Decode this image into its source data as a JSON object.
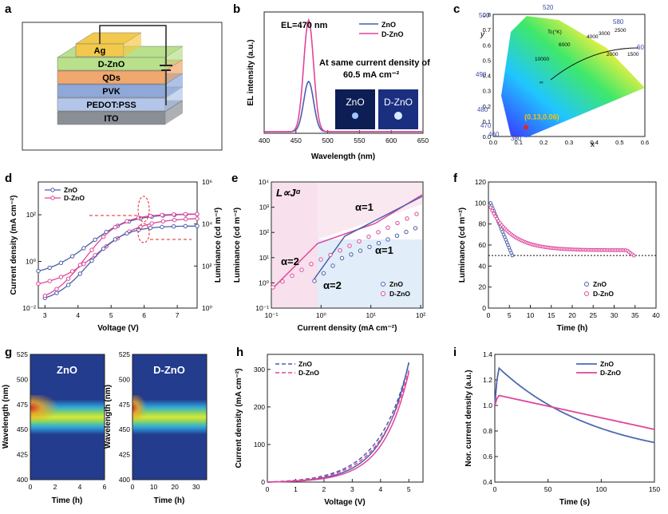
{
  "panel_labels": [
    "a",
    "b",
    "c",
    "d",
    "e",
    "f",
    "g",
    "h",
    "i"
  ],
  "device_stack": {
    "layers": [
      "Ag",
      "D-ZnO",
      "QDs",
      "PVK",
      "PEDOT:PSS",
      "ITO"
    ],
    "colors": [
      "#f2c94c",
      "#b9e08b",
      "#f0a86e",
      "#8fa8d8",
      "#b3c6ea",
      "#8a8f96"
    ]
  },
  "chart_data": [
    {
      "id": "b",
      "type": "line",
      "xlabel": "Wavelength (nm)",
      "ylabel": "EL intensity (a.u.)",
      "xlim": [
        400,
        650
      ],
      "xticks": [
        "400",
        "450",
        "500",
        "550",
        "600",
        "650"
      ],
      "annotations": [
        "EL=470 nm",
        "At same current density of",
        "60.5 mA cm⁻²",
        "ZnO",
        "D-ZnO"
      ],
      "series": [
        {
          "name": "ZnO",
          "color": "#4a5fa8",
          "peak": 470,
          "width": 11,
          "height": 0.45
        },
        {
          "name": "D-ZnO",
          "color": "#e0459a",
          "peak": 470,
          "width": 11,
          "height": 1.0
        }
      ]
    },
    {
      "id": "c",
      "type": "scatter",
      "xlabel": "x",
      "ylabel": "y",
      "xlim": [
        0.0,
        0.6
      ],
      "ylim": [
        0.0,
        0.8
      ],
      "xticks": [
        "0.0",
        "0.1",
        "0.2",
        "0.3",
        "0.4",
        "0.5",
        "0.6"
      ],
      "yticks": [
        "0.0",
        "0.1",
        "0.2",
        "0.3",
        "0.4",
        "0.5",
        "0.6",
        "0.7",
        "0.8"
      ],
      "wavelength_labels": [
        "500",
        "580",
        "60",
        "490",
        "480",
        "470",
        "460",
        "380",
        "520"
      ],
      "planck_labels": [
        "Tc(°K)",
        "10000",
        "6000",
        "4000",
        "3000",
        "2500",
        "2000",
        "1500",
        "∞"
      ],
      "point": {
        "x": 0.13,
        "y": 0.06,
        "label": "(0.13,0.06)"
      }
    },
    {
      "id": "d",
      "type": "line",
      "xlabel": "Voltage (V)",
      "ylabel": "Current density (mA cm⁻²)",
      "y2label": "Luminance (cd m⁻²)",
      "xlim": [
        2.8,
        7.6
      ],
      "xticks": [
        "3",
        "4",
        "5",
        "6",
        "7"
      ],
      "yticks": [
        "10⁻²",
        "10⁰",
        "10²"
      ],
      "y2ticks": [
        "10⁰",
        "10²",
        "10⁴",
        "10⁶"
      ],
      "series": [
        {
          "name": "ZnO",
          "color": "#4a5fa8"
        },
        {
          "name": "D-ZnO",
          "color": "#e0459a"
        }
      ]
    },
    {
      "id": "e",
      "type": "scatter",
      "xlabel": "Current density (mA cm⁻²)",
      "ylabel": "Luminance (cd m⁻²)",
      "xticks": [
        "10⁻¹",
        "10⁰",
        "10¹",
        "10²"
      ],
      "yticks": [
        "10⁻¹",
        "10⁰",
        "10¹",
        "10²",
        "10³",
        "10⁴"
      ],
      "annotations": [
        "L∝Jᵅ",
        "α=2",
        "α=1",
        "α=1",
        "α=2"
      ],
      "series": [
        {
          "name": "ZnO",
          "color": "#4a5fa8"
        },
        {
          "name": "D-ZnO",
          "color": "#e0459a"
        }
      ]
    },
    {
      "id": "f",
      "type": "line",
      "xlabel": "Time (h)",
      "ylabel": "Luminance (cd m⁻²)",
      "xlim": [
        0,
        40
      ],
      "ylim": [
        0,
        120
      ],
      "xticks": [
        "0",
        "5",
        "10",
        "15",
        "20",
        "25",
        "30",
        "35",
        "40"
      ],
      "yticks": [
        "0",
        "20",
        "40",
        "60",
        "80",
        "100",
        "120"
      ],
      "series": [
        {
          "name": "ZnO",
          "color": "#4a5fa8"
        },
        {
          "name": "D-ZnO",
          "color": "#e0459a"
        }
      ]
    },
    {
      "id": "g",
      "type": "heatmap",
      "ylabel": "Wavelength (nm)",
      "yticks": [
        "400",
        "425",
        "450",
        "475",
        "500",
        "525"
      ],
      "panels": [
        {
          "label": "ZnO",
          "xlabel": "Time (h)",
          "xticks": [
            "0",
            "2",
            "4",
            "6"
          ]
        },
        {
          "label": "D-ZnO",
          "xlabel": "Time (h)",
          "xticks": [
            "0",
            "10",
            "20",
            "30"
          ]
        }
      ]
    },
    {
      "id": "h",
      "type": "line",
      "xlabel": "Voltage (V)",
      "ylabel": "Current density (mA cm⁻²)",
      "xlim": [
        0,
        5.5
      ],
      "ylim": [
        0,
        340
      ],
      "xticks": [
        "0",
        "1",
        "2",
        "3",
        "4",
        "5"
      ],
      "yticks": [
        "0",
        "100",
        "200",
        "300"
      ],
      "series": [
        {
          "name": "ZnO",
          "color": "#4a5fa8"
        },
        {
          "name": "D-ZnO",
          "color": "#e0459a"
        }
      ]
    },
    {
      "id": "i",
      "type": "line",
      "xlabel": "Time (s)",
      "ylabel": "Nor. current density (a.u.)",
      "xlim": [
        0,
        150
      ],
      "ylim": [
        0.4,
        1.4
      ],
      "xticks": [
        "0",
        "50",
        "100",
        "150"
      ],
      "yticks": [
        "0.4",
        "0.6",
        "0.8",
        "1.0",
        "1.2",
        "1.4"
      ],
      "series": [
        {
          "name": "ZnO",
          "color": "#5068b0"
        },
        {
          "name": "D-ZnO",
          "color": "#e0459a"
        }
      ]
    }
  ]
}
